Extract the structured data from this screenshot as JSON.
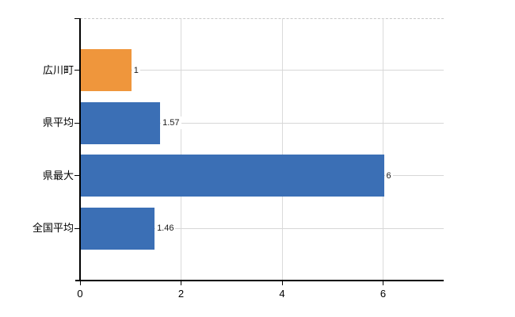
{
  "chart_data": {
    "type": "bar",
    "orientation": "horizontal",
    "title": "",
    "xlabel": "",
    "ylabel": "",
    "categories": [
      "広川町",
      "県平均",
      "県最大",
      "全国平均"
    ],
    "values": [
      1,
      1.57,
      6,
      1.46
    ],
    "value_labels": [
      "1",
      "1.57",
      "6",
      "1.46"
    ],
    "bar_colors": [
      "#ef963c",
      "#3b6fb5",
      "#3b6fb5",
      "#3b6fb5"
    ],
    "highlight_color": "#ef963c",
    "series_color": "#3b6fb5",
    "x_ticks": [
      0,
      2,
      4,
      6
    ],
    "x_tick_labels": [
      "0",
      "2",
      "4",
      "6"
    ],
    "xlim": [
      0,
      7.2
    ],
    "grid": "on",
    "grid_color": "#d7d7d7",
    "axis_color": "#000000",
    "legend": "none"
  }
}
